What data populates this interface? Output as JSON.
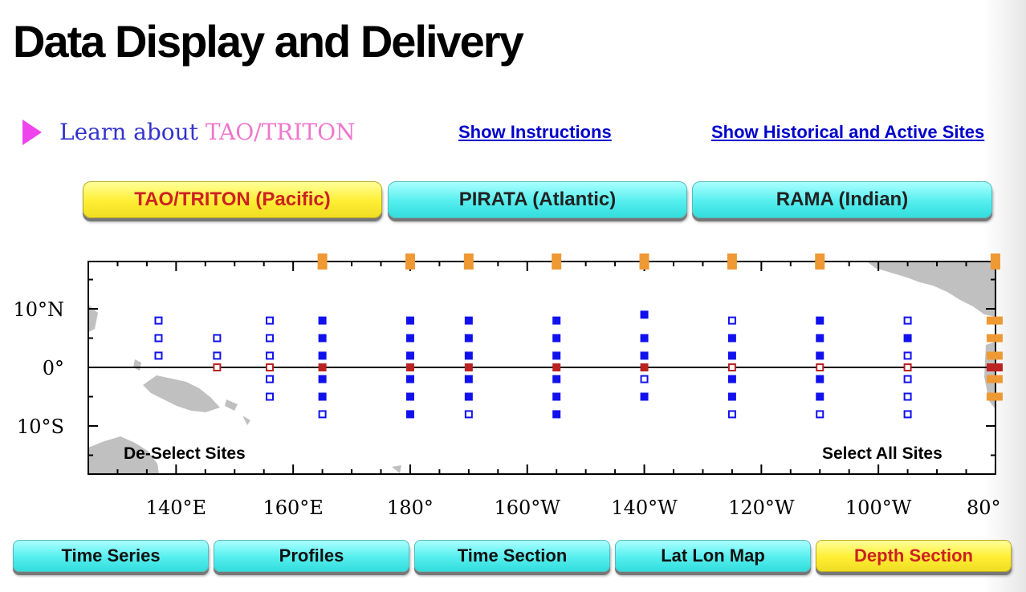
{
  "title": "Data Display and Delivery",
  "learn": {
    "prefix": "Learn about ",
    "highlight": "TAO/TRITON"
  },
  "links": {
    "instructions": "Show Instructions",
    "historical": "Show Historical and Active Sites"
  },
  "array_tabs": [
    {
      "label": "TAO/TRITON (Pacific)",
      "selected": true
    },
    {
      "label": "PIRATA (Atlantic)",
      "selected": false
    },
    {
      "label": "RAMA (Indian)",
      "selected": false
    }
  ],
  "map": {
    "x_ticks": [
      "140°E",
      "160°E",
      "180°",
      "160°W",
      "140°W",
      "120°W",
      "100°W",
      "80°"
    ],
    "y_ticks": [
      "10°N",
      "0°",
      "10°S"
    ],
    "deselect_label": "De-Select Sites",
    "select_label": "Select All Sites",
    "colors": {
      "active": "#1111ee",
      "equator": "#bb2222",
      "column": "#ee9933",
      "land": "#c0c0c0"
    },
    "column_lons": [
      165,
      180,
      190,
      205,
      220,
      235,
      250,
      280
    ],
    "sites": [
      {
        "lon": 137,
        "lat": 8,
        "status": "open"
      },
      {
        "lon": 137,
        "lat": 5,
        "status": "open"
      },
      {
        "lon": 137,
        "lat": 2,
        "status": "open"
      },
      {
        "lon": 147,
        "lat": 5,
        "status": "open"
      },
      {
        "lon": 147,
        "lat": 2,
        "status": "open"
      },
      {
        "lon": 147,
        "lat": 0,
        "status": "equator-open"
      },
      {
        "lon": 156,
        "lat": 8,
        "status": "open"
      },
      {
        "lon": 156,
        "lat": 5,
        "status": "open"
      },
      {
        "lon": 156,
        "lat": 2,
        "status": "open"
      },
      {
        "lon": 156,
        "lat": 0,
        "status": "equator-open"
      },
      {
        "lon": 156,
        "lat": -2,
        "status": "open"
      },
      {
        "lon": 156,
        "lat": -5,
        "status": "open"
      },
      {
        "lon": 165,
        "lat": 8,
        "status": "filled"
      },
      {
        "lon": 165,
        "lat": 5,
        "status": "filled"
      },
      {
        "lon": 165,
        "lat": 2,
        "status": "filled"
      },
      {
        "lon": 165,
        "lat": 0,
        "status": "equator"
      },
      {
        "lon": 165,
        "lat": -2,
        "status": "filled"
      },
      {
        "lon": 165,
        "lat": -5,
        "status": "filled"
      },
      {
        "lon": 165,
        "lat": -8,
        "status": "open"
      },
      {
        "lon": 180,
        "lat": 8,
        "status": "filled"
      },
      {
        "lon": 180,
        "lat": 5,
        "status": "filled"
      },
      {
        "lon": 180,
        "lat": 2,
        "status": "filled"
      },
      {
        "lon": 180,
        "lat": 0,
        "status": "equator"
      },
      {
        "lon": 180,
        "lat": -2,
        "status": "filled"
      },
      {
        "lon": 180,
        "lat": -5,
        "status": "filled"
      },
      {
        "lon": 180,
        "lat": -8,
        "status": "filled"
      },
      {
        "lon": 190,
        "lat": 8,
        "status": "filled"
      },
      {
        "lon": 190,
        "lat": 5,
        "status": "filled"
      },
      {
        "lon": 190,
        "lat": 2,
        "status": "filled"
      },
      {
        "lon": 190,
        "lat": 0,
        "status": "equator"
      },
      {
        "lon": 190,
        "lat": -2,
        "status": "filled"
      },
      {
        "lon": 190,
        "lat": -5,
        "status": "filled"
      },
      {
        "lon": 190,
        "lat": -8,
        "status": "open"
      },
      {
        "lon": 205,
        "lat": 8,
        "status": "filled"
      },
      {
        "lon": 205,
        "lat": 5,
        "status": "filled"
      },
      {
        "lon": 205,
        "lat": 2,
        "status": "filled"
      },
      {
        "lon": 205,
        "lat": 0,
        "status": "equator"
      },
      {
        "lon": 205,
        "lat": -2,
        "status": "filled"
      },
      {
        "lon": 205,
        "lat": -5,
        "status": "filled"
      },
      {
        "lon": 205,
        "lat": -8,
        "status": "filled"
      },
      {
        "lon": 220,
        "lat": 9,
        "status": "filled"
      },
      {
        "lon": 220,
        "lat": 5,
        "status": "filled"
      },
      {
        "lon": 220,
        "lat": 2,
        "status": "filled"
      },
      {
        "lon": 220,
        "lat": 0,
        "status": "equator"
      },
      {
        "lon": 220,
        "lat": -2,
        "status": "open"
      },
      {
        "lon": 220,
        "lat": -5,
        "status": "filled"
      },
      {
        "lon": 235,
        "lat": 8,
        "status": "open"
      },
      {
        "lon": 235,
        "lat": 5,
        "status": "filled"
      },
      {
        "lon": 235,
        "lat": 2,
        "status": "filled"
      },
      {
        "lon": 235,
        "lat": 0,
        "status": "equator-open"
      },
      {
        "lon": 235,
        "lat": -2,
        "status": "filled"
      },
      {
        "lon": 235,
        "lat": -5,
        "status": "filled"
      },
      {
        "lon": 235,
        "lat": -8,
        "status": "open"
      },
      {
        "lon": 250,
        "lat": 8,
        "status": "filled"
      },
      {
        "lon": 250,
        "lat": 5,
        "status": "filled"
      },
      {
        "lon": 250,
        "lat": 2,
        "status": "filled"
      },
      {
        "lon": 250,
        "lat": 0,
        "status": "equator-open"
      },
      {
        "lon": 250,
        "lat": -2,
        "status": "filled"
      },
      {
        "lon": 250,
        "lat": -5,
        "status": "filled"
      },
      {
        "lon": 250,
        "lat": -8,
        "status": "open"
      },
      {
        "lon": 265,
        "lat": 8,
        "status": "open"
      },
      {
        "lon": 265,
        "lat": 5,
        "status": "filled"
      },
      {
        "lon": 265,
        "lat": 2,
        "status": "open"
      },
      {
        "lon": 265,
        "lat": 0,
        "status": "equator-open"
      },
      {
        "lon": 265,
        "lat": -2,
        "status": "open"
      },
      {
        "lon": 265,
        "lat": -5,
        "status": "open"
      },
      {
        "lon": 265,
        "lat": -8,
        "status": "open"
      },
      {
        "lon": 280,
        "lat": 8,
        "status": "column"
      },
      {
        "lon": 280,
        "lat": 5,
        "status": "column"
      },
      {
        "lon": 280,
        "lat": 2,
        "status": "column"
      },
      {
        "lon": 280,
        "lat": 0,
        "status": "equator-column"
      },
      {
        "lon": 280,
        "lat": -2,
        "status": "column"
      },
      {
        "lon": 280,
        "lat": -5,
        "status": "column"
      }
    ]
  },
  "display_tabs": [
    {
      "label": "Time Series",
      "selected": false
    },
    {
      "label": "Profiles",
      "selected": false
    },
    {
      "label": "Time Section",
      "selected": false
    },
    {
      "label": "Lat Lon Map",
      "selected": false
    },
    {
      "label": "Depth Section",
      "selected": true
    }
  ]
}
